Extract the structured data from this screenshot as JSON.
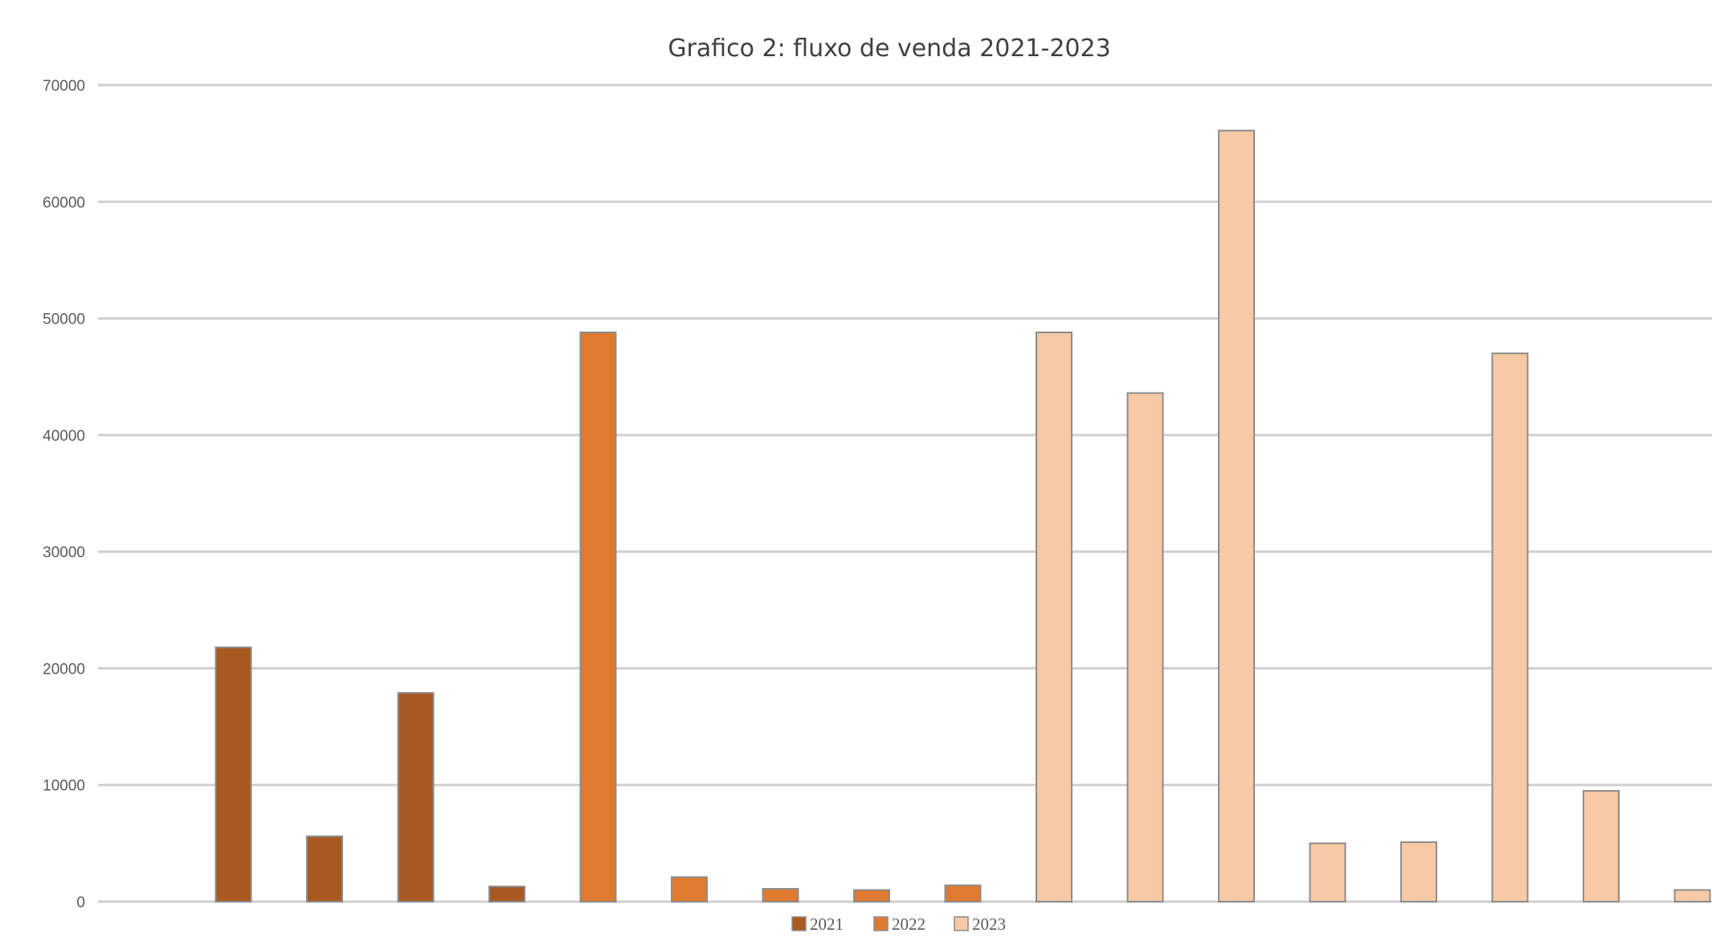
{
  "chart_data": {
    "type": "bar",
    "title": "Grafico 2: fluxo de venda  2021-2023",
    "xlabel": "",
    "ylabel": "",
    "ylim": [
      0,
      70000
    ],
    "yticks": [
      0,
      10000,
      20000,
      30000,
      40000,
      50000,
      60000,
      70000
    ],
    "grid": true,
    "legend_position": "bottom",
    "categories": [
      "",
      "",
      "",
      "",
      "",
      "",
      "",
      "",
      "",
      "",
      "",
      "",
      "",
      "",
      "",
      "",
      "",
      "",
      ""
    ],
    "series": [
      {
        "name": "2021",
        "color": "#a85a22",
        "values": [
          0,
          21800,
          5600,
          17900,
          1300,
          null,
          null,
          null,
          null,
          null,
          null,
          null,
          null,
          null,
          null,
          null,
          null,
          null,
          null
        ]
      },
      {
        "name": "2022",
        "color": "#e07a30",
        "values": [
          null,
          null,
          null,
          null,
          null,
          48800,
          2100,
          1100,
          1000,
          1400,
          null,
          null,
          null,
          null,
          null,
          null,
          null,
          null,
          null
        ]
      },
      {
        "name": "2023",
        "color": "#f7c9a4",
        "values": [
          null,
          null,
          null,
          null,
          null,
          null,
          null,
          null,
          null,
          null,
          48800,
          43600,
          66100,
          5000,
          5100,
          47000,
          9500,
          1000,
          null
        ]
      }
    ]
  }
}
